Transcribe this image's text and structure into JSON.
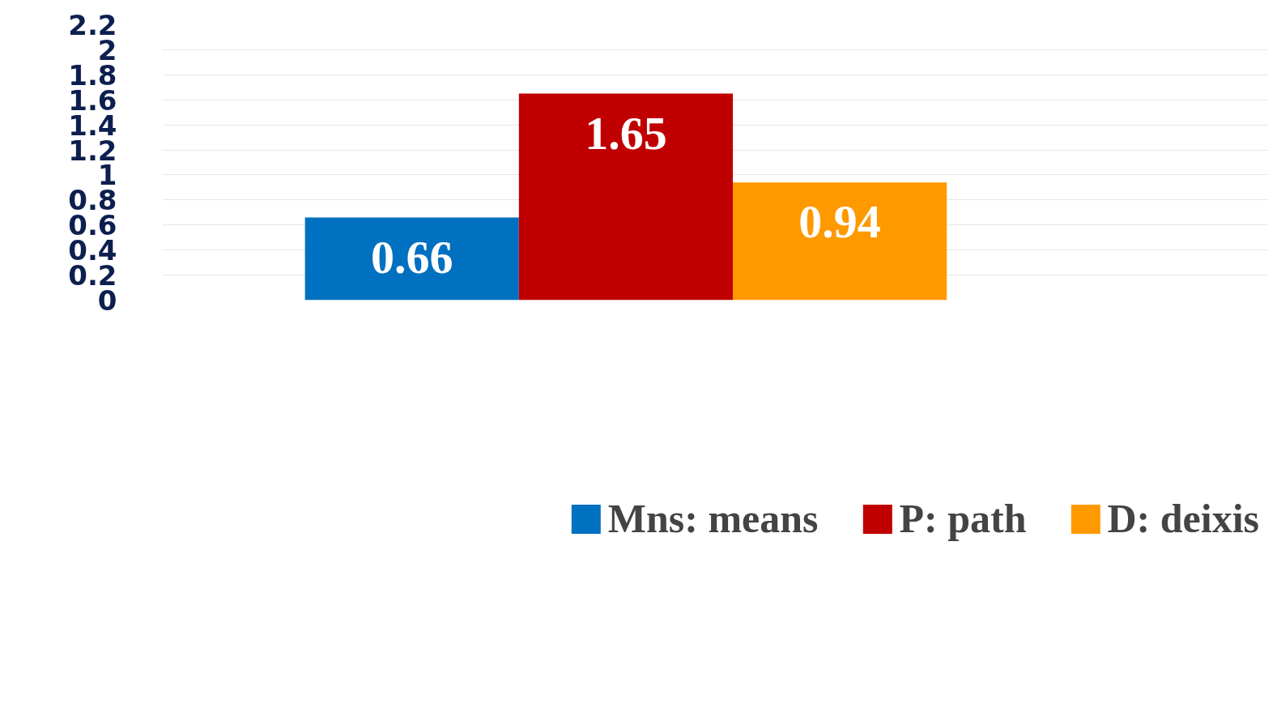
{
  "chart_data": {
    "type": "bar",
    "categories": [
      null
    ],
    "series": [
      {
        "name": "Mns: means",
        "color": "#0070c0",
        "values": [
          0.66
        ]
      },
      {
        "name": "P: path",
        "color": "#c00000",
        "values": [
          1.65
        ]
      },
      {
        "name": "D: deixis",
        "color": "#ff9900",
        "values": [
          0.94
        ]
      }
    ],
    "ylim": [
      0,
      2.2
    ],
    "yticks": [
      0,
      0.2,
      0.4,
      0.6,
      0.8,
      1,
      1.2,
      1.4,
      1.6,
      1.8,
      2,
      2.2
    ],
    "grid": "y",
    "legend": "bottom",
    "data_labels": true
  }
}
